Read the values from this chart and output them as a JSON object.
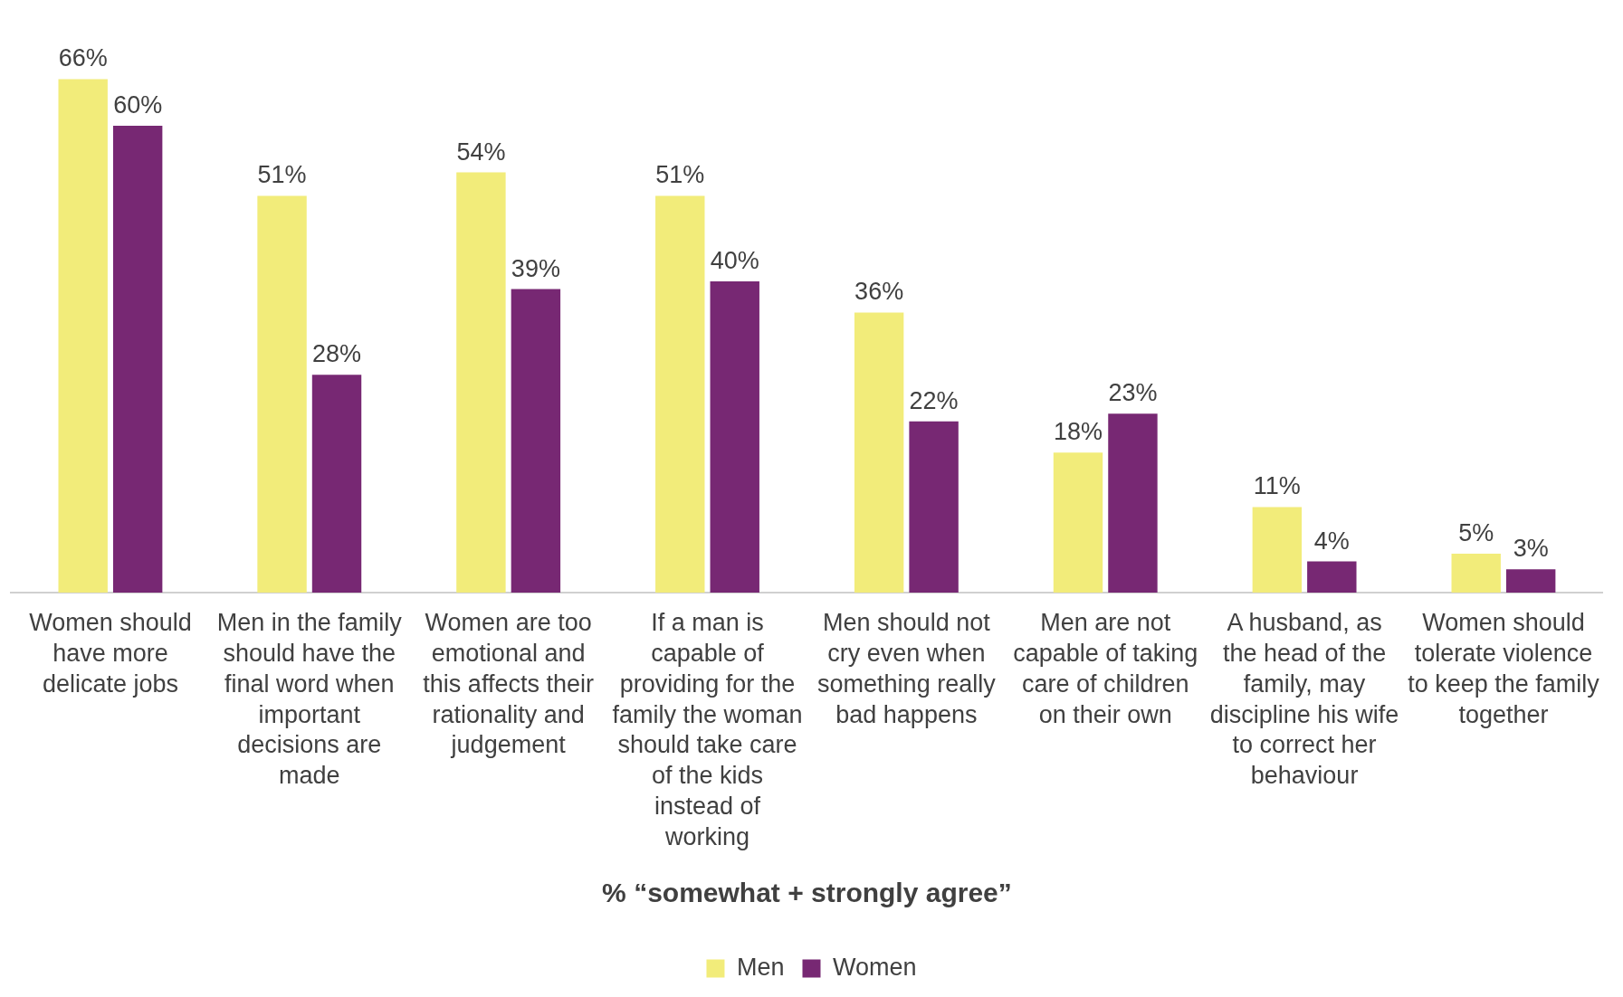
{
  "chart_data": {
    "type": "bar",
    "xlabel": "% “somewhat + strongly agree”",
    "categories": [
      "Women should have more delicate jobs",
      "Men in the family should have the final word when important decisions are made",
      "Women are too emotional and this affects their rationality and judgement",
      "If a man is capable of providing for the family the woman should take care of the kids instead of working",
      "Men should not cry even when something really bad happens",
      "Men are not capable of taking care of children on their own",
      "A husband, as the head of the family, may discipline his wife to correct her behaviour",
      "Women should tolerate violence to keep the family together"
    ],
    "series": [
      {
        "name": "Men",
        "color": "#f2ec7a",
        "values": [
          66,
          51,
          54,
          51,
          36,
          18,
          11,
          5
        ],
        "value_labels": [
          "66%",
          "51%",
          "54%",
          "51%",
          "36%",
          "18%",
          "11%",
          "5%"
        ]
      },
      {
        "name": "Women",
        "color": "#772873",
        "values": [
          60,
          28,
          39,
          40,
          22,
          23,
          4,
          3
        ],
        "value_labels": [
          "60%",
          "28%",
          "39%",
          "40%",
          "22%",
          "23%",
          "4%",
          "3%"
        ]
      }
    ],
    "grid": false,
    "legend": "bottom",
    "tick_labels": "x"
  }
}
